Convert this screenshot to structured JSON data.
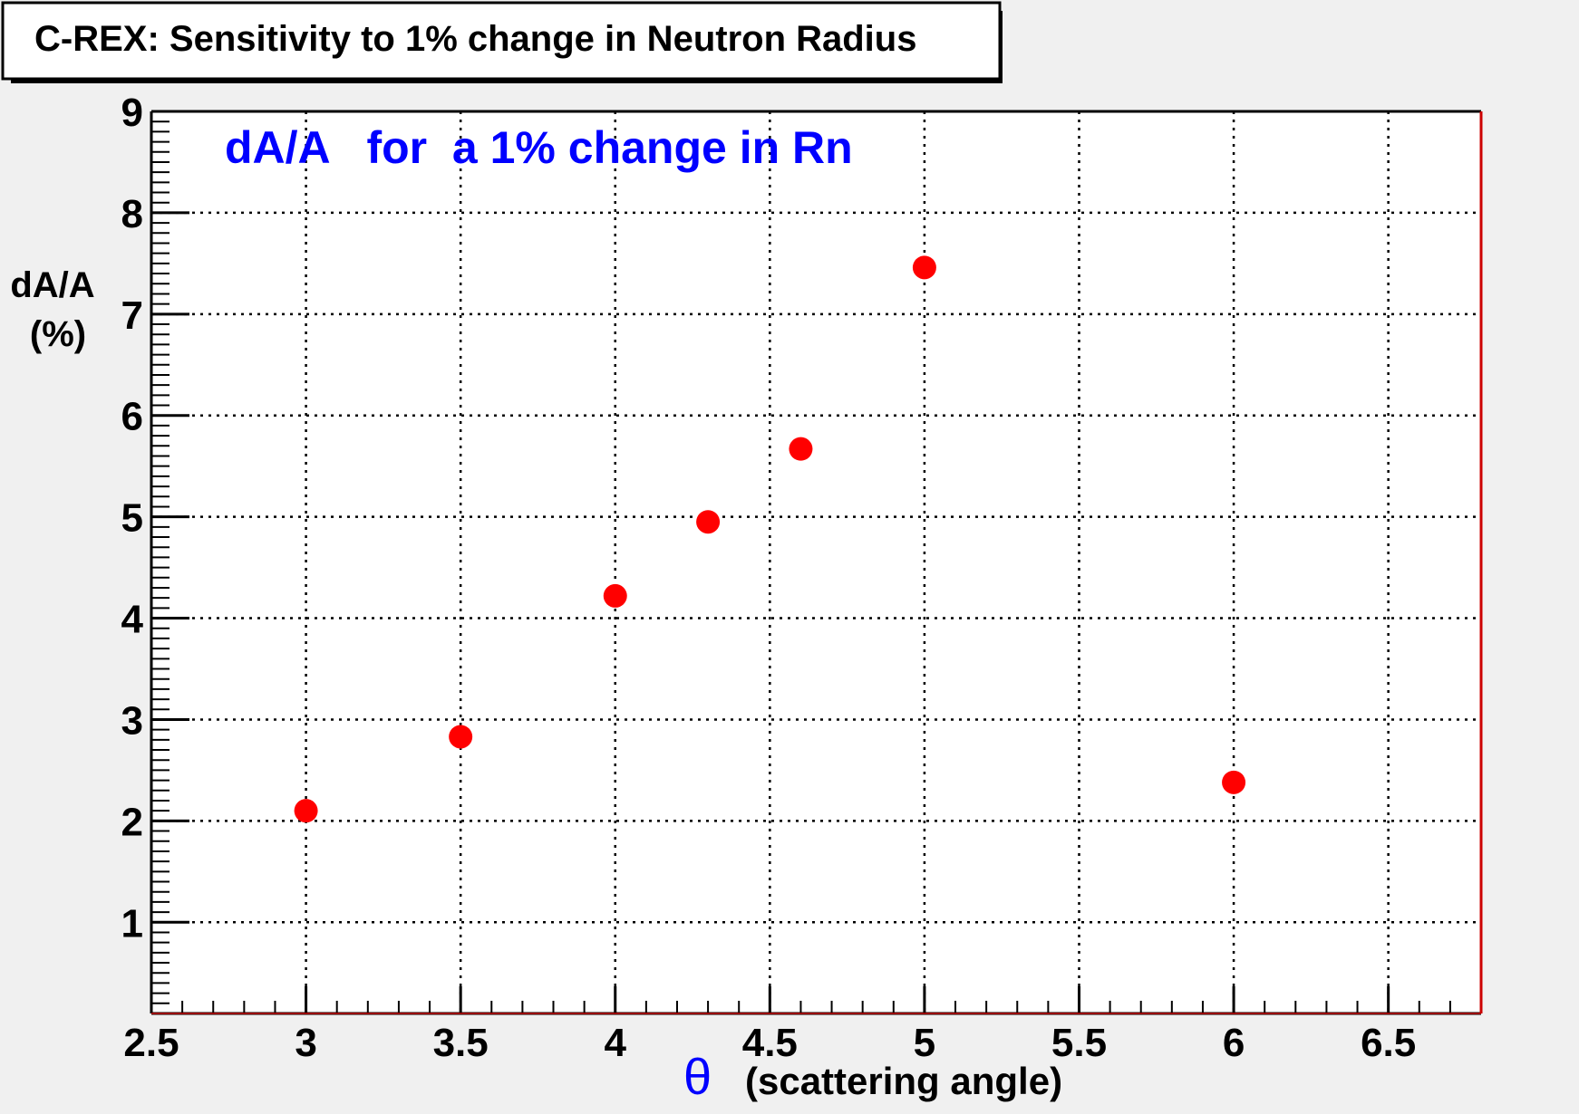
{
  "chart_data": {
    "type": "scatter",
    "title": "C-REX: Sensitivity to 1% change in Neutron Radius",
    "annotation": "dA/A   for  a 1% change in Rn",
    "ylabel_lines": [
      "dA/A",
      "(%)"
    ],
    "xlabel_symbol": "θ",
    "xlabel_text": "(scattering angle)",
    "xlim": [
      2.5,
      6.8
    ],
    "ylim": [
      0.1,
      9
    ],
    "xticks": [
      "2.5",
      "3",
      "3.5",
      "4",
      "4.5",
      "5",
      "5.5",
      "6",
      "6.5"
    ],
    "yticks": [
      "1",
      "2",
      "3",
      "4",
      "5",
      "6",
      "7",
      "8",
      "9"
    ],
    "grid": true,
    "points": [
      {
        "x": 3.0,
        "y": 2.1
      },
      {
        "x": 3.5,
        "y": 2.83
      },
      {
        "x": 4.0,
        "y": 4.22
      },
      {
        "x": 4.3,
        "y": 4.95
      },
      {
        "x": 4.6,
        "y": 5.67
      },
      {
        "x": 5.0,
        "y": 7.46
      },
      {
        "x": 6.0,
        "y": 2.38
      }
    ],
    "marker_color": "#ff0000",
    "annotation_color": "#0000ff",
    "frame_right_color": "#cc0000"
  }
}
